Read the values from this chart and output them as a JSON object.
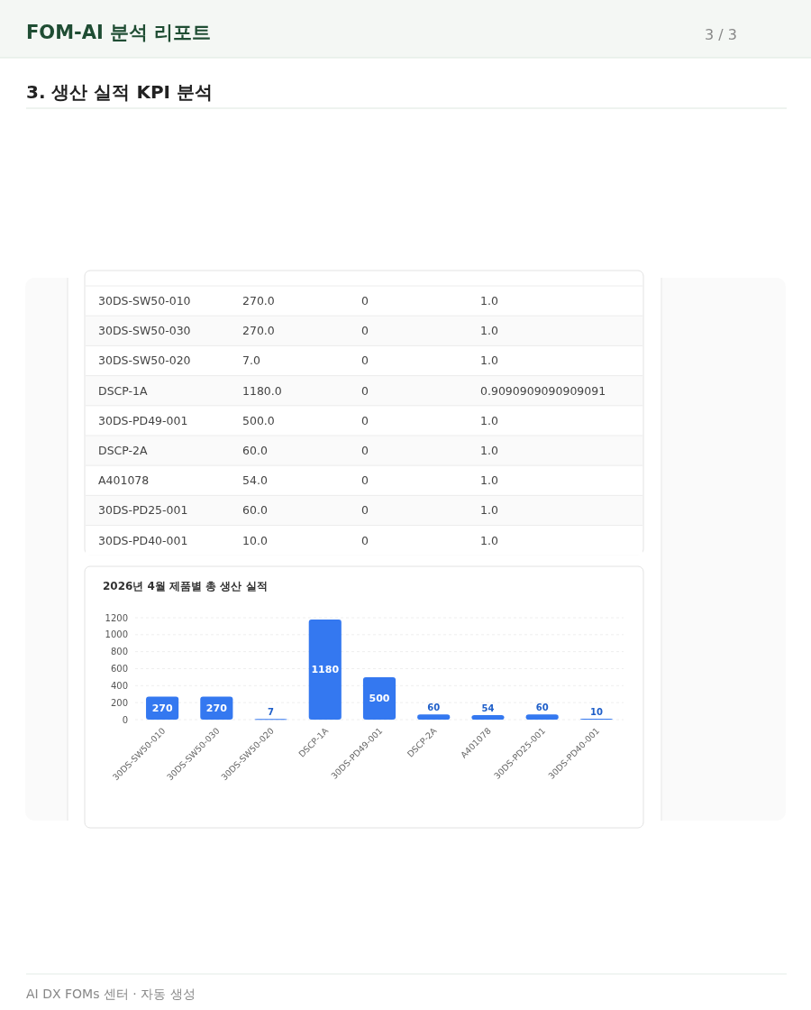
{
  "chart_data": [
    {
      "type": "other",
      "title": "3. 생산 실적 KPI 분석",
      "annotations": [
        "FOM-AI 분석 리포트",
        "3 / 3",
        "AI DX FOMs 센터 · 자동 생성"
      ],
      "categories": [
        "30DS-SW50-010",
        "30DS-SW50-030",
        "30DS-SW50-020",
        "DSCP-1A",
        "30DS-PD49-001",
        "DSCP-2A",
        "A401078",
        "30DS-PD25-001",
        "30DS-PD40-001"
      ],
      "series": [
        {
          "values": [
            270,
            270,
            7,
            1180,
            500,
            60,
            54,
            60,
            10
          ],
          "value_labels": [
            "270.0",
            "270.0",
            "7.0",
            "1180.0",
            "500.0",
            "60.0",
            "54.0",
            "60.0",
            "10.0"
          ]
        },
        {
          "values": [
            0,
            0,
            0,
            0,
            0,
            0,
            0,
            0,
            0
          ],
          "value_labels": [
            "0",
            "0",
            "0",
            "0",
            "0",
            "0",
            "0",
            "0",
            "0"
          ]
        },
        {
          "values": [
            1,
            1,
            1,
            0.9090909090909091,
            1,
            1,
            1,
            1,
            1
          ],
          "value_labels": [
            "1.0",
            "1.0",
            "1.0",
            "0.9090909090909091",
            "1.0",
            "1.0",
            "1.0",
            "1.0",
            "1.0"
          ]
        }
      ]
    },
    {
      "type": "bar",
      "title": "2026년 4월 제품별 총 생산 실적",
      "categories": [
        "30DS-SW50-010",
        "30DS-SW50-030",
        "30DS-SW50-020",
        "DSCP-1A",
        "30DS-PD49-001",
        "DSCP-2A",
        "A401078",
        "30DS-PD25-001",
        "30DS-PD40-001"
      ],
      "values": [
        270,
        270,
        7,
        1180,
        500,
        60,
        54,
        60,
        10
      ],
      "color": "#3478f0",
      "ylim": [
        0,
        1200
      ],
      "yticks": [
        0,
        200,
        400,
        600,
        800,
        1000,
        1200
      ],
      "grid": "y",
      "data_labels": true
    }
  ]
}
